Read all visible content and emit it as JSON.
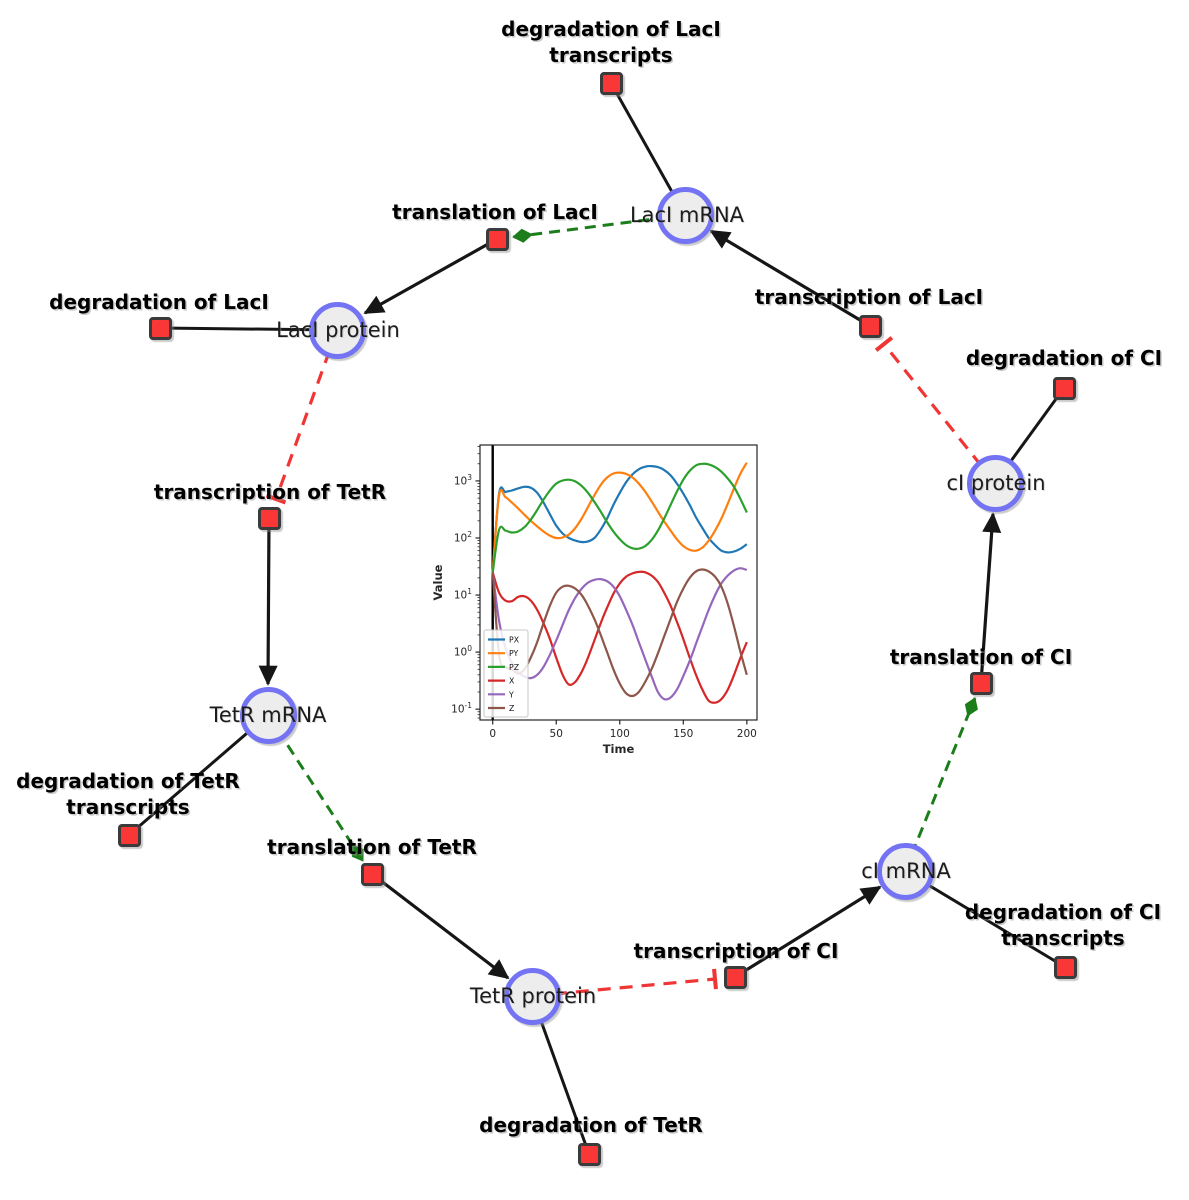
{
  "diagram": {
    "species": [
      {
        "label": "LacI mRNA"
      },
      {
        "label": "LacI protein"
      },
      {
        "label": "TetR mRNA"
      },
      {
        "label": "TetR protein"
      },
      {
        "label": "cI mRNA"
      },
      {
        "label": "cI protein"
      }
    ],
    "reactions": [
      {
        "line1": "degradation of LacI",
        "line2": "transcripts"
      },
      {
        "line1": "translation of LacI"
      },
      {
        "line1": "degradation of LacI"
      },
      {
        "line1": "transcription of TetR"
      },
      {
        "line1": "degradation of TetR",
        "line2": "transcripts"
      },
      {
        "line1": "translation of TetR"
      },
      {
        "line1": "degradation of TetR"
      },
      {
        "line1": "transcription of CI"
      },
      {
        "line1": "degradation of CI",
        "line2": "transcripts"
      },
      {
        "line1": "translation of CI"
      },
      {
        "line1": "degradation of CI"
      },
      {
        "line1": "transcription of LacI"
      }
    ],
    "colors": {
      "species_fill": "#ededed",
      "species_border": "#7373f3",
      "reaction_fill": "#fa3737",
      "reaction_border": "#3b3b3b",
      "edge_reactant_product": "#161616",
      "edge_modifier": "#1b7e1b",
      "edge_inhibition": "#f03535"
    }
  },
  "chart_data": {
    "type": "line",
    "title": "",
    "xlabel": "Time",
    "ylabel": "Value",
    "yscale": "log",
    "grid": false,
    "legend_position": "lower left",
    "xlim": [
      -10,
      208
    ],
    "ylim_log10": [
      -1.19,
      3.63
    ],
    "xticks": [
      0,
      50,
      100,
      150,
      200
    ],
    "ytick_exponents": [
      3,
      2,
      1,
      0,
      -1
    ],
    "vline_x": 0,
    "x": [
      0,
      5,
      10,
      15,
      20,
      25,
      30,
      35,
      40,
      45,
      50,
      55,
      60,
      65,
      70,
      75,
      80,
      85,
      90,
      95,
      100,
      105,
      110,
      115,
      120,
      125,
      130,
      135,
      140,
      145,
      150,
      155,
      160,
      165,
      170,
      175,
      180,
      185,
      190,
      195,
      200
    ],
    "series": [
      {
        "name": "PX",
        "color": "#1f77b4",
        "values": [
          25,
          600,
          640,
          680,
          740,
          790,
          760,
          620,
          420,
          260,
          165,
          120,
          100,
          90,
          85,
          87,
          100,
          140,
          220,
          380,
          620,
          950,
          1300,
          1600,
          1780,
          1820,
          1750,
          1550,
          1250,
          900,
          600,
          380,
          230,
          150,
          100,
          75,
          60,
          56,
          58,
          65,
          78
        ]
      },
      {
        "name": "PY",
        "color": "#ff7f0e",
        "values": [
          25,
          560,
          520,
          420,
          330,
          255,
          200,
          160,
          130,
          110,
          100,
          102,
          115,
          150,
          220,
          350,
          560,
          850,
          1150,
          1350,
          1400,
          1330,
          1150,
          900,
          650,
          440,
          290,
          195,
          135,
          95,
          72,
          62,
          60,
          68,
          90,
          135,
          220,
          400,
          750,
          1350,
          2100
        ]
      },
      {
        "name": "PZ",
        "color": "#2ca02c",
        "values": [
          25,
          140,
          135,
          125,
          130,
          155,
          210,
          310,
          470,
          680,
          900,
          1020,
          1050,
          980,
          820,
          620,
          430,
          290,
          190,
          130,
          95,
          75,
          66,
          65,
          72,
          92,
          135,
          220,
          380,
          650,
          1050,
          1500,
          1870,
          2000,
          1950,
          1750,
          1450,
          1100,
          780,
          480,
          280
        ]
      },
      {
        "name": "X",
        "color": "#d62728",
        "values": [
          25,
          11,
          8,
          7.8,
          9.3,
          9.5,
          8,
          5.5,
          3.2,
          1.7,
          0.8,
          0.4,
          0.27,
          0.3,
          0.45,
          0.8,
          1.6,
          3.2,
          6,
          10.5,
          16,
          21,
          24,
          25.5,
          25,
          22,
          17,
          11,
          6.5,
          3.4,
          1.7,
          0.8,
          0.4,
          0.22,
          0.14,
          0.13,
          0.15,
          0.22,
          0.4,
          0.8,
          1.5
        ]
      },
      {
        "name": "Y",
        "color": "#9467bd",
        "values": [
          25,
          3.5,
          1.2,
          0.65,
          0.45,
          0.37,
          0.35,
          0.4,
          0.55,
          0.9,
          1.6,
          3,
          5.5,
          9,
          13,
          16.5,
          18.5,
          19,
          17.5,
          14,
          9.5,
          5.5,
          3,
          1.5,
          0.75,
          0.38,
          0.2,
          0.15,
          0.16,
          0.22,
          0.38,
          0.7,
          1.4,
          2.8,
          5.5,
          10,
          16,
          22,
          27,
          29.5,
          27.5
        ]
      },
      {
        "name": "Z",
        "color": "#8c564b",
        "values": [
          25,
          0.9,
          0.55,
          0.5,
          0.42,
          0.5,
          0.8,
          1.5,
          3.2,
          6.5,
          11,
          14,
          14.5,
          13,
          10,
          6.5,
          3.8,
          2,
          1,
          0.5,
          0.28,
          0.19,
          0.17,
          0.2,
          0.3,
          0.5,
          0.95,
          1.9,
          3.8,
          7.5,
          13,
          20,
          26,
          28,
          26,
          21,
          14,
          7,
          2.8,
          1,
          0.4
        ]
      }
    ]
  }
}
